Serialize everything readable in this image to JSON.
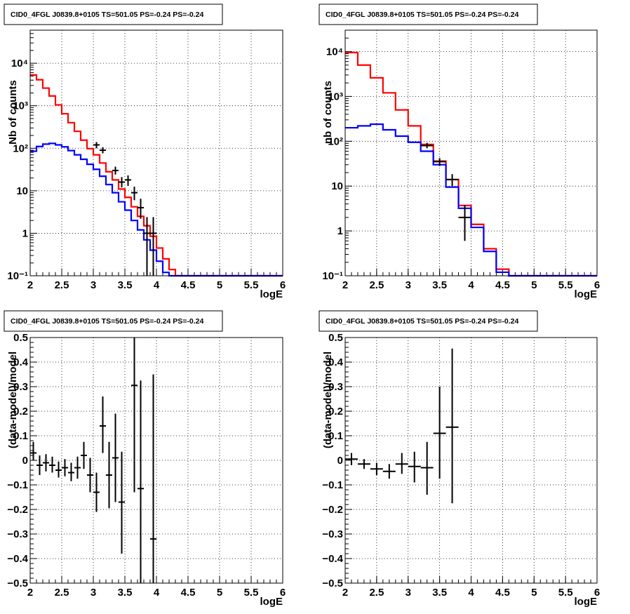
{
  "chart_data": [
    {
      "type": "line",
      "title": "CID0_4FGL J0839.8+0105 TS=501.05 PS=-0.24 PS=-0.24",
      "xlabel": "logE",
      "ylabel": "Nb of counts",
      "xlim": [
        2,
        6
      ],
      "ylim": [
        0.1,
        60000
      ],
      "yscale": "log",
      "grid": true,
      "xticks": [
        "2",
        "2.5",
        "3",
        "3.5",
        "4",
        "4.5",
        "5",
        "5.5",
        "6"
      ],
      "yticks": [
        {
          "value": 0.1,
          "label": "10⁻¹"
        },
        {
          "value": 1,
          "label": "1"
        },
        {
          "value": 10,
          "label": "10"
        },
        {
          "value": 100,
          "label": "10²"
        },
        {
          "value": 1000,
          "label": "10³"
        },
        {
          "value": 10000,
          "label": "10⁴"
        }
      ],
      "bin_edges": [
        2.0,
        2.1,
        2.2,
        2.3,
        2.4,
        2.5,
        2.6,
        2.7,
        2.8,
        2.9,
        3.0,
        3.1,
        3.2,
        3.3,
        3.4,
        3.5,
        3.6,
        3.7,
        3.8,
        3.9,
        4.0,
        4.1,
        4.2,
        4.3,
        4.4,
        4.5,
        4.6,
        4.7,
        4.8,
        4.9,
        5.0,
        5.1,
        5.2,
        5.3,
        5.4,
        5.5,
        5.6,
        5.7,
        5.8,
        5.9,
        6.0
      ],
      "series": [
        {
          "role": "total-model",
          "color": "#ff0000",
          "style": "step",
          "values": [
            5300,
            4100,
            2600,
            1700,
            1050,
            650,
            400,
            250,
            155,
            98,
            70,
            45,
            28,
            18,
            11,
            7,
            4.2,
            2.5,
            1.5,
            0.85,
            0.45,
            0.25,
            0.14,
            0.1,
            0.1,
            0.1,
            0.1,
            0.1,
            0.1,
            0.1,
            0.1,
            0.1,
            0.1,
            0.1,
            0.1,
            0.1,
            0.1,
            0.1,
            0.1,
            0.1
          ]
        },
        {
          "role": "source-model",
          "color": "#0000ff",
          "style": "step",
          "values": [
            85,
            110,
            125,
            130,
            120,
            108,
            88,
            70,
            55,
            42,
            32,
            22,
            14,
            9,
            5.5,
            3.5,
            2,
            1.2,
            0.7,
            0.4,
            0.22,
            0.12,
            0.1,
            0.1,
            0.1,
            0.1,
            0.1,
            0.1,
            0.1,
            0.1,
            0.1,
            0.1,
            0.1,
            0.1,
            0.1,
            0.1,
            0.1,
            0.1,
            0.1,
            0.1
          ]
        },
        {
          "role": "data",
          "color": "#000000",
          "style": "errorbar",
          "points": [
            {
              "x": 3.05,
              "y": 120,
              "ylo": 100,
              "yhi": 140
            },
            {
              "x": 3.15,
              "y": 90,
              "ylo": 76,
              "yhi": 106
            },
            {
              "x": 3.35,
              "y": 30,
              "ylo": 24,
              "yhi": 37
            },
            {
              "x": 3.45,
              "y": 16,
              "ylo": 12,
              "yhi": 21
            },
            {
              "x": 3.55,
              "y": 18,
              "ylo": 13,
              "yhi": 23
            },
            {
              "x": 3.65,
              "y": 9,
              "ylo": 6,
              "yhi": 12.5
            },
            {
              "x": 3.75,
              "y": 4,
              "ylo": 2.2,
              "yhi": 6.5
            },
            {
              "x": 3.85,
              "y": 1,
              "ylo": 0.1,
              "yhi": 2.4
            },
            {
              "x": 3.95,
              "y": 1,
              "ylo": 0.1,
              "yhi": 2.4
            }
          ]
        }
      ]
    },
    {
      "type": "line",
      "title": "CID0_4FGL J0839.8+0105 TS=501.05 PS=-0.24 PS=-0.24",
      "xlabel": "logE",
      "ylabel": "nb of counts",
      "xlim": [
        2,
        6
      ],
      "ylim": [
        0.1,
        30000
      ],
      "yscale": "log",
      "grid": true,
      "xticks": [
        "2",
        "2.5",
        "3",
        "3.5",
        "4",
        "4.5",
        "5",
        "5.5",
        "6"
      ],
      "yticks": [
        {
          "value": 0.1,
          "label": "10⁻¹"
        },
        {
          "value": 1,
          "label": "1"
        },
        {
          "value": 10,
          "label": "10"
        },
        {
          "value": 100,
          "label": "10²"
        },
        {
          "value": 1000,
          "label": "10³"
        },
        {
          "value": 10000,
          "label": "10⁴"
        }
      ],
      "bin_edges": [
        2.0,
        2.2,
        2.4,
        2.6,
        2.8,
        3.0,
        3.2,
        3.4,
        3.6,
        3.8,
        4.0,
        4.2,
        4.4,
        4.6,
        4.8,
        5.0,
        5.2,
        5.4,
        5.6,
        5.8,
        6.0
      ],
      "series": [
        {
          "role": "total-model",
          "color": "#ff0000",
          "style": "step",
          "values": [
            9500,
            5000,
            2600,
            1200,
            500,
            220,
            85,
            36,
            14,
            3.7,
            1.4,
            0.4,
            0.14,
            0.1,
            0.1,
            0.1,
            0.1,
            0.1,
            0.1,
            0.1
          ]
        },
        {
          "role": "source-model",
          "color": "#0000ff",
          "style": "step",
          "values": [
            200,
            220,
            240,
            180,
            130,
            95,
            60,
            30,
            9.5,
            3.2,
            1.2,
            0.35,
            0.12,
            0.1,
            0.1,
            0.1,
            0.1,
            0.1,
            0.1,
            0.1
          ]
        },
        {
          "role": "data",
          "color": "#000000",
          "style": "errorbar",
          "points": [
            {
              "x": 3.3,
              "y": 80,
              "ylo": 70,
              "yhi": 92
            },
            {
              "x": 3.5,
              "y": 35,
              "ylo": 28,
              "yhi": 42
            },
            {
              "x": 3.7,
              "y": 14,
              "ylo": 10,
              "yhi": 18.5
            },
            {
              "x": 3.9,
              "y": 2,
              "ylo": 0.6,
              "yhi": 3.8
            }
          ]
        }
      ]
    },
    {
      "type": "scatter",
      "title": "CID0_4FGL J0839.8+0105 TS=501.05 PS=-0.24 PS=-0.24",
      "xlabel": "logE",
      "ylabel": "(data-model)/model",
      "xlim": [
        2,
        6
      ],
      "ylim": [
        -0.5,
        0.5
      ],
      "grid": true,
      "xticks": [
        "2",
        "2.5",
        "3",
        "3.5",
        "4",
        "4.5",
        "5",
        "5.5",
        "6"
      ],
      "yticks": [
        {
          "value": -0.5,
          "label": "−0.5"
        },
        {
          "value": -0.4,
          "label": "−0.4"
        },
        {
          "value": -0.3,
          "label": "−0.3"
        },
        {
          "value": -0.2,
          "label": "−0.2"
        },
        {
          "value": -0.1,
          "label": "−0.1"
        },
        {
          "value": 0,
          "label": "0"
        },
        {
          "value": 0.1,
          "label": "0.1"
        },
        {
          "value": 0.2,
          "label": "0.2"
        },
        {
          "value": 0.3,
          "label": "0.3"
        },
        {
          "value": 0.4,
          "label": "0.4"
        },
        {
          "value": 0.5,
          "label": "0.5"
        }
      ],
      "xhalf": 0.05,
      "points": [
        {
          "x": 2.05,
          "y": 0.03,
          "ylo": 0.0,
          "yhi": 0.075
        },
        {
          "x": 2.15,
          "y": -0.02,
          "ylo": -0.06,
          "yhi": 0.02
        },
        {
          "x": 2.25,
          "y": -0.01,
          "ylo": -0.045,
          "yhi": 0.025
        },
        {
          "x": 2.35,
          "y": -0.02,
          "ylo": -0.05,
          "yhi": 0.015
        },
        {
          "x": 2.45,
          "y": -0.04,
          "ylo": -0.07,
          "yhi": -0.005
        },
        {
          "x": 2.55,
          "y": -0.03,
          "ylo": -0.065,
          "yhi": 0.005
        },
        {
          "x": 2.65,
          "y": -0.05,
          "ylo": -0.085,
          "yhi": -0.01
        },
        {
          "x": 2.75,
          "y": -0.03,
          "ylo": -0.075,
          "yhi": 0.015
        },
        {
          "x": 2.85,
          "y": 0.02,
          "ylo": -0.035,
          "yhi": 0.075
        },
        {
          "x": 2.95,
          "y": -0.06,
          "ylo": -0.13,
          "yhi": 0.01
        },
        {
          "x": 3.05,
          "y": -0.13,
          "ylo": -0.21,
          "yhi": -0.05
        },
        {
          "x": 3.15,
          "y": 0.14,
          "ylo": 0.03,
          "yhi": 0.26
        },
        {
          "x": 3.25,
          "y": -0.06,
          "ylo": -0.195,
          "yhi": 0.075
        },
        {
          "x": 3.35,
          "y": 0.01,
          "ylo": -0.17,
          "yhi": 0.19
        },
        {
          "x": 3.45,
          "y": -0.17,
          "ylo": -0.38,
          "yhi": 0.035
        },
        {
          "x": 3.65,
          "y": 0.305,
          "ylo": -0.13,
          "yhi": 0.5
        },
        {
          "x": 3.75,
          "y": -0.115,
          "ylo": -0.5,
          "yhi": 0.325
        },
        {
          "x": 3.95,
          "y": -0.32,
          "ylo": -0.5,
          "yhi": 0.35
        }
      ]
    },
    {
      "type": "scatter",
      "title": "CID0_4FGL J0839.8+0105 TS=501.05 PS=-0.24 PS=-0.24",
      "xlabel": "logE",
      "ylabel": "(data-model)/model",
      "xlim": [
        2,
        6
      ],
      "ylim": [
        -0.5,
        0.5
      ],
      "grid": true,
      "xticks": [
        "2",
        "2.5",
        "3",
        "3.5",
        "4",
        "4.5",
        "5",
        "5.5",
        "6"
      ],
      "yticks": [
        {
          "value": -0.5,
          "label": "−0.5"
        },
        {
          "value": -0.4,
          "label": "−0.4"
        },
        {
          "value": -0.3,
          "label": "−0.3"
        },
        {
          "value": -0.2,
          "label": "−0.2"
        },
        {
          "value": -0.1,
          "label": "−0.1"
        },
        {
          "value": 0,
          "label": "0"
        },
        {
          "value": 0.1,
          "label": "0.1"
        },
        {
          "value": 0.2,
          "label": "0.2"
        },
        {
          "value": 0.3,
          "label": "0.3"
        },
        {
          "value": 0.4,
          "label": "0.4"
        },
        {
          "value": 0.5,
          "label": "0.5"
        }
      ],
      "xhalf": 0.1,
      "points": [
        {
          "x": 2.1,
          "y": 0.005,
          "ylo": -0.02,
          "yhi": 0.03
        },
        {
          "x": 2.3,
          "y": -0.015,
          "ylo": -0.035,
          "yhi": 0.005
        },
        {
          "x": 2.5,
          "y": -0.035,
          "ylo": -0.06,
          "yhi": -0.01
        },
        {
          "x": 2.7,
          "y": -0.045,
          "ylo": -0.075,
          "yhi": -0.015
        },
        {
          "x": 2.9,
          "y": -0.015,
          "ylo": -0.055,
          "yhi": 0.03
        },
        {
          "x": 3.1,
          "y": -0.025,
          "ylo": -0.09,
          "yhi": 0.035
        },
        {
          "x": 3.3,
          "y": -0.03,
          "ylo": -0.14,
          "yhi": 0.075
        },
        {
          "x": 3.5,
          "y": 0.11,
          "ylo": -0.075,
          "yhi": 0.3
        },
        {
          "x": 3.7,
          "y": 0.135,
          "ylo": -0.175,
          "yhi": 0.455
        }
      ]
    }
  ]
}
